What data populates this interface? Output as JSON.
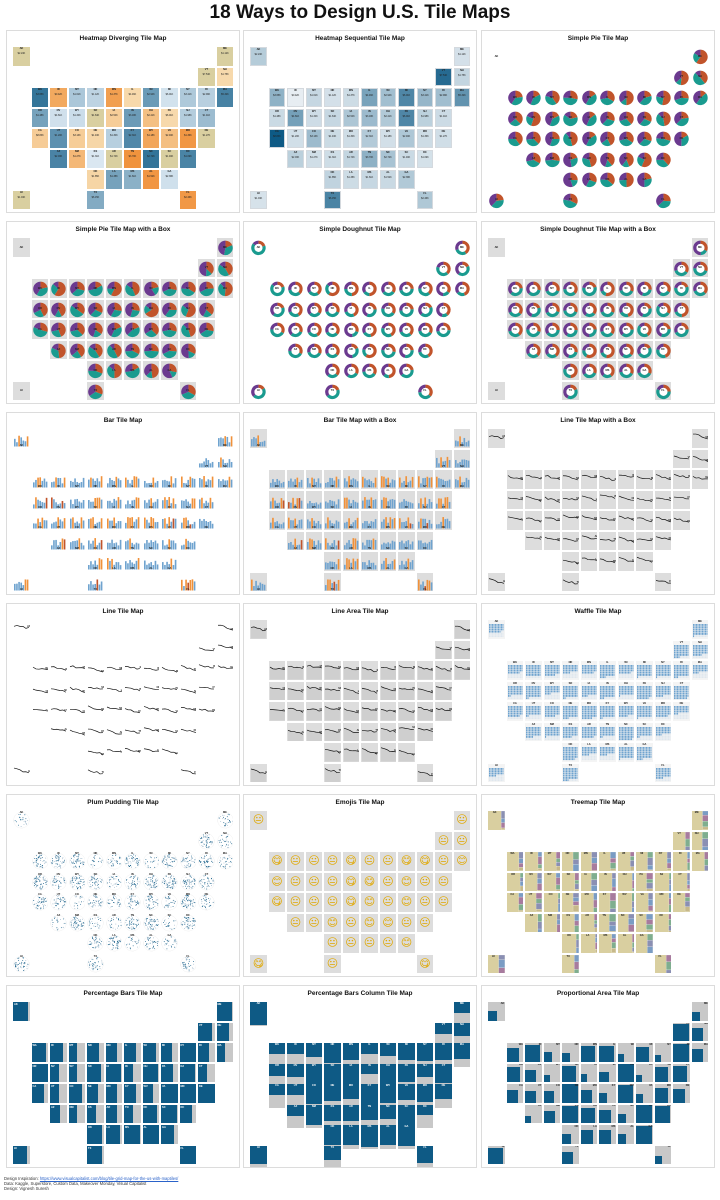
{
  "title": "18 Ways to Design U.S. Tile Maps",
  "panels": [
    {
      "title": "Heatmap Diverging Tile Map",
      "style": "heat-div"
    },
    {
      "title": "Heatmap Sequential Tile Map",
      "style": "heat-seq"
    },
    {
      "title": "Simple Pie Tile Map",
      "style": "pie"
    },
    {
      "title": "Simple Pie Tile Map with a Box",
      "style": "pie-box"
    },
    {
      "title": "Simple Doughnut Tile Map",
      "style": "donut"
    },
    {
      "title": "Simple Doughnut Tile Map with a Box",
      "style": "donut-box"
    },
    {
      "title": "Bar Tile Map",
      "style": "bar"
    },
    {
      "title": "Bar Tile Map with a Box",
      "style": "bar-box"
    },
    {
      "title": "Line Tile Map with a Box",
      "style": "line-box"
    },
    {
      "title": "Line Tile Map",
      "style": "line"
    },
    {
      "title": "Line Area Tile Map",
      "style": "line-area"
    },
    {
      "title": "Waffle Tile Map",
      "style": "waffle"
    },
    {
      "title": "Plum Pudding Tile Map",
      "style": "plum"
    },
    {
      "title": "Emojis Tile Map",
      "style": "emoji"
    },
    {
      "title": "Treemap Tile Map",
      "style": "treemap"
    },
    {
      "title": "Percentage Bars Tile Map",
      "style": "pct-bar"
    },
    {
      "title": "Percentage Bars Column Tile Map",
      "style": "pct-col"
    },
    {
      "title": "Proportional Area Tile Map",
      "style": "prop-area"
    }
  ],
  "states": [
    "AK",
    "ME",
    "VT",
    "NH",
    "WA",
    "ID",
    "MT",
    "ND",
    "MN",
    "IL",
    "WI",
    "MI",
    "NY",
    "RI",
    "MA",
    "OR",
    "NV",
    "WY",
    "SD",
    "IA",
    "IN",
    "OH",
    "PA",
    "NJ",
    "CT",
    "CA",
    "UT",
    "CO",
    "NE",
    "MO",
    "KY",
    "WV",
    "VA",
    "MD",
    "DE",
    "AZ",
    "NM",
    "KS",
    "AR",
    "TN",
    "NC",
    "SC",
    "DC",
    "OK",
    "LA",
    "MS",
    "AL",
    "GA",
    "HI",
    "TX",
    "FL"
  ],
  "heat_values": [
    "$2.24K",
    "$1.12K",
    "$7.54K",
    "$1.75K",
    "$3.65K",
    "$0.42K",
    "$1.61K",
    "$1.12K",
    "$1.37K",
    "$4.46K",
    "$2.94K",
    "$6.01K",
    "$3.41K",
    "$2.99K",
    "$5.32K",
    "$1.48K",
    "$4.61K",
    "$1.34K",
    "$1.64K",
    "$2.54K",
    "$3.18K",
    "$2.41K",
    "$6.01K",
    "$1.98K",
    "$1.41K",
    "$8.83K",
    "$1.20K",
    "$3.13K",
    "$1.43K",
    "$1.30K",
    "$2.31K",
    "$1.18K",
    "$2.49K",
    "$1.36K",
    "$1.27K",
    "$2.03K",
    "$1.27K",
    "$1.31K",
    "$1.74K",
    "$3.70K",
    "$2.72K",
    "$1.49K",
    "$1.09K",
    "$1.85K",
    "$1.38K",
    "$1.61K",
    "$1.52K",
    "$2.38K",
    "$1.04K",
    "$6.15K",
    "$2.46K"
  ],
  "emoji_faces": [
    "😐",
    "😐",
    "😐",
    "😐",
    "😋",
    "😐",
    "😐",
    "😐",
    "😋",
    "😐",
    "😐",
    "😋",
    "😋",
    "😐",
    "😊",
    "😊",
    "😐",
    "😐",
    "😐",
    "😋",
    "😋",
    "😐",
    "😊",
    "😐",
    "😐",
    "😋",
    "😐",
    "😐",
    "😐",
    "😋",
    "😊",
    "😐",
    "😊",
    "😐",
    "😐",
    "😐",
    "😐",
    "😊",
    "😐",
    "😊",
    "😊",
    "😐",
    "😐",
    "😐",
    "😐",
    "😐",
    "😐",
    "😊",
    "😋",
    "😐",
    "😋"
  ],
  "colors": {
    "navy": "#0e5a85",
    "blue": "#6fa3cf",
    "lightblue": "#a9c9e3",
    "orange": "#f0913a",
    "tan": "#d9cfa0",
    "rust": "#c1542b",
    "teal": "#1a9b8f",
    "purple": "#6b3a8f",
    "grey": "#c8c8c8",
    "tilebox": "#dddddd"
  },
  "credits": {
    "line1_label": "Design Inspiration:",
    "line1_link": "https://www.visualcapitalist.com/blog/tile-grid-map-for-the-us-with-maptiles/",
    "line2": "Data: Kaggle, Superstore, Custom Data, Makeover Monday, Visual Capitalist",
    "line3": "Design: Vignesh Suresh"
  }
}
